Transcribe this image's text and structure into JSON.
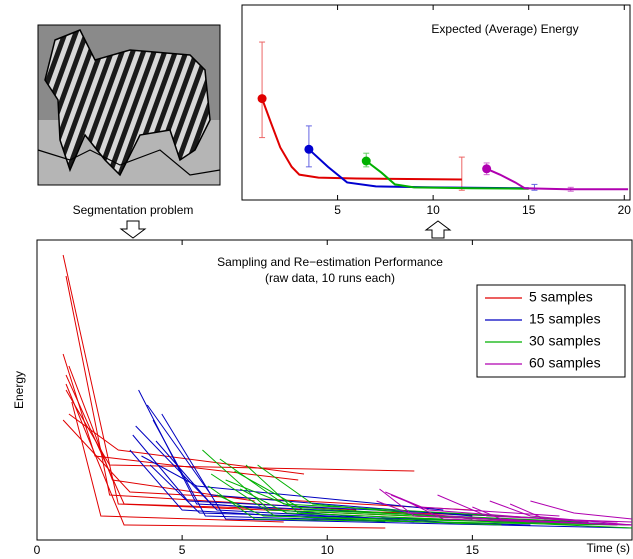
{
  "image_caption": "Segmentation problem",
  "chart_data": [
    {
      "type": "line",
      "title": "Expected (Average) Energy",
      "xlim": [
        0,
        20.3
      ],
      "xticks": [
        5,
        10,
        15,
        20
      ],
      "ylim": [
        0,
        1
      ],
      "series": [
        {
          "name": "5 samples",
          "color": "#e00000",
          "x": [
            1.05,
            1.5,
            2.0,
            2.6,
            3.0,
            4,
            6,
            11.5
          ],
          "values": [
            0.52,
            0.4,
            0.27,
            0.17,
            0.13,
            0.115,
            0.11,
            0.105
          ],
          "error_bars": [
            {
              "x": 1.05,
              "low": 0.32,
              "high": 0.81
            },
            {
              "x": 11.5,
              "low": 0.05,
              "high": 0.22
            }
          ]
        },
        {
          "name": "15 samples",
          "color": "#0000d0",
          "x": [
            3.5,
            4.5,
            5.5,
            7,
            10,
            15
          ],
          "values": [
            0.26,
            0.17,
            0.09,
            0.07,
            0.065,
            0.06
          ],
          "error_bars": [
            {
              "x": 3.5,
              "low": 0.17,
              "high": 0.38
            },
            {
              "x": 15.3,
              "low": 0.05,
              "high": 0.08
            }
          ]
        },
        {
          "name": "30 samples",
          "color": "#00b000",
          "x": [
            6.5,
            7.3,
            8,
            9,
            12,
            15
          ],
          "values": [
            0.2,
            0.14,
            0.08,
            0.065,
            0.06,
            0.058
          ],
          "error_bars": [
            {
              "x": 6.5,
              "low": 0.17,
              "high": 0.24
            }
          ]
        },
        {
          "name": "60 samples",
          "color": "#b000b0",
          "x": [
            12.8,
            13.5,
            14.3,
            14.8,
            17,
            20.2
          ],
          "values": [
            0.16,
            0.13,
            0.09,
            0.06,
            0.055,
            0.055
          ],
          "error_bars": [
            {
              "x": 12.8,
              "low": 0.13,
              "high": 0.19
            },
            {
              "x": 17.2,
              "low": 0.045,
              "high": 0.065
            }
          ]
        }
      ]
    },
    {
      "type": "line",
      "title": "Sampling and Re−estimation Performance",
      "subtitle": "(raw data, 10 runs each)",
      "xlabel": "Time (s)",
      "ylabel": "Energy",
      "legend": "top-right",
      "xlim": [
        0,
        20.5
      ],
      "xticks": [
        0,
        5,
        10,
        15
      ],
      "ylim": [
        0,
        1
      ],
      "series": [
        {
          "name": "5 samples",
          "color": "#e00000",
          "runs": [
            {
              "x": [
                0.9,
                2.8,
                15.5
              ],
              "values": [
                0.95,
                0.12,
                0.07
              ]
            },
            {
              "x": [
                1.0,
                2.5,
                11
              ],
              "values": [
                0.88,
                0.15,
                0.1
              ]
            },
            {
              "x": [
                0.9,
                2.0,
                9
              ],
              "values": [
                0.62,
                0.28,
                0.2
              ]
            },
            {
              "x": [
                1.1,
                2.6,
                7.5
              ],
              "values": [
                0.58,
                0.2,
                0.13
              ]
            },
            {
              "x": [
                1.0,
                3.0,
                16
              ],
              "values": [
                0.55,
                0.12,
                0.08
              ]
            },
            {
              "x": [
                1.0,
                2.5,
                13
              ],
              "values": [
                0.5,
                0.25,
                0.23
              ]
            },
            {
              "x": [
                0.9,
                3.2,
                15
              ],
              "values": [
                0.4,
                0.16,
                0.1
              ]
            },
            {
              "x": [
                1.2,
                2.2,
                8.5
              ],
              "values": [
                0.46,
                0.08,
                0.06
              ]
            },
            {
              "x": [
                1.0,
                3.0,
                12
              ],
              "values": [
                0.52,
                0.05,
                0.04
              ]
            },
            {
              "x": [
                1.1,
                2.8,
                9.2
              ],
              "values": [
                0.42,
                0.3,
                0.22
              ]
            }
          ]
        },
        {
          "name": "15 samples",
          "color": "#0000c0",
          "runs": [
            {
              "x": [
                3.5,
                5.5,
                20.5
              ],
              "values": [
                0.5,
                0.12,
                0.05
              ]
            },
            {
              "x": [
                3.8,
                6,
                15
              ],
              "values": [
                0.45,
                0.15,
                0.08
              ]
            },
            {
              "x": [
                3.2,
                5,
                12
              ],
              "values": [
                0.3,
                0.1,
                0.06
              ]
            },
            {
              "x": [
                4.0,
                5.8,
                17
              ],
              "values": [
                0.4,
                0.08,
                0.05
              ]
            },
            {
              "x": [
                3.3,
                5.2,
                18
              ],
              "values": [
                0.35,
                0.13,
                0.07
              ]
            },
            {
              "x": [
                4.3,
                6.5,
                20.5
              ],
              "values": [
                0.42,
                0.07,
                0.04
              ]
            },
            {
              "x": [
                3.6,
                5.5,
                14
              ],
              "values": [
                0.28,
                0.18,
                0.1
              ]
            },
            {
              "x": [
                3.4,
                6.2,
                16
              ],
              "values": [
                0.38,
                0.1,
                0.05
              ]
            },
            {
              "x": [
                4.1,
                6,
                13
              ],
              "values": [
                0.33,
                0.12,
                0.06
              ]
            },
            {
              "x": [
                3.9,
                5.6,
                20.5
              ],
              "values": [
                0.25,
                0.09,
                0.05
              ]
            }
          ]
        },
        {
          "name": "30 samples",
          "color": "#00b000",
          "runs": [
            {
              "x": [
                5.7,
                8,
                20.5
              ],
              "values": [
                0.3,
                0.1,
                0.05
              ]
            },
            {
              "x": [
                6.3,
                8.5,
                18
              ],
              "values": [
                0.27,
                0.12,
                0.07
              ]
            },
            {
              "x": [
                6.0,
                8.2,
                16
              ],
              "values": [
                0.22,
                0.08,
                0.05
              ]
            },
            {
              "x": [
                7.2,
                9,
                20.5
              ],
              "values": [
                0.25,
                0.09,
                0.04
              ]
            },
            {
              "x": [
                6.5,
                8.8,
                17
              ],
              "values": [
                0.2,
                0.11,
                0.06
              ]
            },
            {
              "x": [
                7.6,
                9.5,
                15
              ],
              "values": [
                0.25,
                0.12,
                0.07
              ]
            },
            {
              "x": [
                5.9,
                7.5,
                20
              ],
              "values": [
                0.18,
                0.07,
                0.05
              ]
            },
            {
              "x": [
                6.8,
                9.2,
                19
              ],
              "values": [
                0.23,
                0.1,
                0.06
              ]
            },
            {
              "x": [
                7.0,
                8.6,
                14
              ],
              "values": [
                0.17,
                0.09,
                0.07
              ]
            },
            {
              "x": [
                6.2,
                7.8,
                20.5
              ],
              "values": [
                0.15,
                0.08,
                0.05
              ]
            }
          ]
        },
        {
          "name": "60 samples",
          "color": "#b000b0",
          "runs": [
            {
              "x": [
                11.8,
                13,
                20.5
              ],
              "values": [
                0.17,
                0.08,
                0.05
              ]
            },
            {
              "x": [
                12.0,
                13.5,
                19
              ],
              "values": [
                0.16,
                0.1,
                0.06
              ]
            },
            {
              "x": [
                12.5,
                14,
                20.5
              ],
              "values": [
                0.14,
                0.07,
                0.05
              ]
            },
            {
              "x": [
                13.8,
                15.5,
                20
              ],
              "values": [
                0.15,
                0.08,
                0.06
              ]
            },
            {
              "x": [
                15.6,
                17,
                20.5
              ],
              "values": [
                0.13,
                0.08,
                0.05
              ]
            },
            {
              "x": [
                16.3,
                17.5,
                20.5
              ],
              "values": [
                0.12,
                0.07,
                0.06
              ]
            },
            {
              "x": [
                17.0,
                18.5,
                20.5
              ],
              "values": [
                0.13,
                0.09,
                0.07
              ]
            },
            {
              "x": [
                11.7,
                12.8,
                17
              ],
              "values": [
                0.13,
                0.09,
                0.06
              ]
            },
            {
              "x": [
                15.0,
                16,
                20
              ],
              "values": [
                0.11,
                0.07,
                0.05
              ]
            },
            {
              "x": [
                12.2,
                13.2,
                18
              ],
              "values": [
                0.15,
                0.11,
                0.08
              ]
            }
          ]
        }
      ]
    }
  ]
}
